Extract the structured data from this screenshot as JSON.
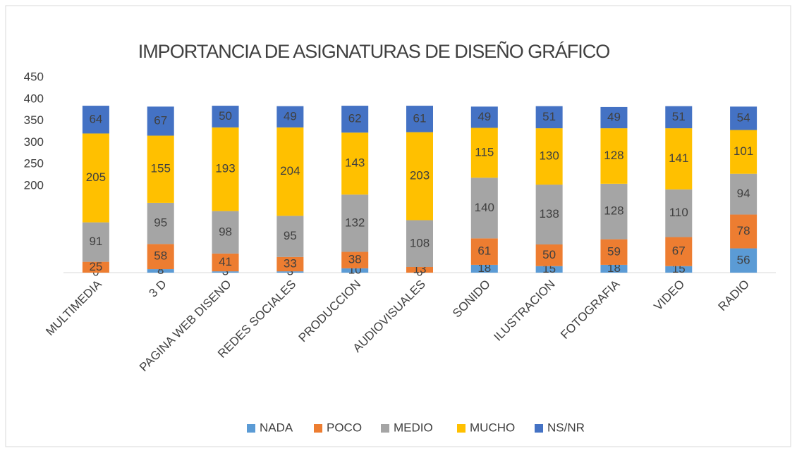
{
  "chart_data": {
    "type": "stacked_bar",
    "title": "IMPORTANCIA DE ASIGNATURAS DE DISEÑO GRÁFICO",
    "categories": [
      "MULTIMEDIA",
      "3 D",
      "PAGINA WEB DISENO",
      "REDES SOCIALES",
      "PRODUCCION",
      "AUDIOVISUALES",
      "SONIDO",
      "ILUSTRACION",
      "FOTOGRAFIA",
      "VIDEO",
      "RADIO"
    ],
    "series": [
      {
        "name": "NADA",
        "color": "#5b9bd5",
        "values": [
          0,
          8,
          3,
          3,
          10,
          0,
          18,
          15,
          18,
          15,
          56
        ]
      },
      {
        "name": "POCO",
        "color": "#ed7d31",
        "values": [
          25,
          58,
          41,
          33,
          38,
          13,
          61,
          50,
          59,
          67,
          78
        ]
      },
      {
        "name": "MEDIO",
        "color": "#a5a5a5",
        "values": [
          91,
          95,
          98,
          95,
          132,
          108,
          140,
          138,
          128,
          110,
          94
        ]
      },
      {
        "name": "MUCHO",
        "color": "#ffc000",
        "values": [
          205,
          155,
          193,
          204,
          143,
          203,
          115,
          130,
          128,
          141,
          101
        ]
      },
      {
        "name": "NS/NR",
        "color": "#4472c4",
        "values": [
          64,
          67,
          50,
          49,
          62,
          61,
          49,
          51,
          49,
          51,
          54
        ]
      }
    ],
    "ylim": [
      0,
      455
    ],
    "yticks": [
      200,
      250,
      300,
      350,
      400,
      450
    ],
    "grid": false,
    "legend": "bottom"
  }
}
